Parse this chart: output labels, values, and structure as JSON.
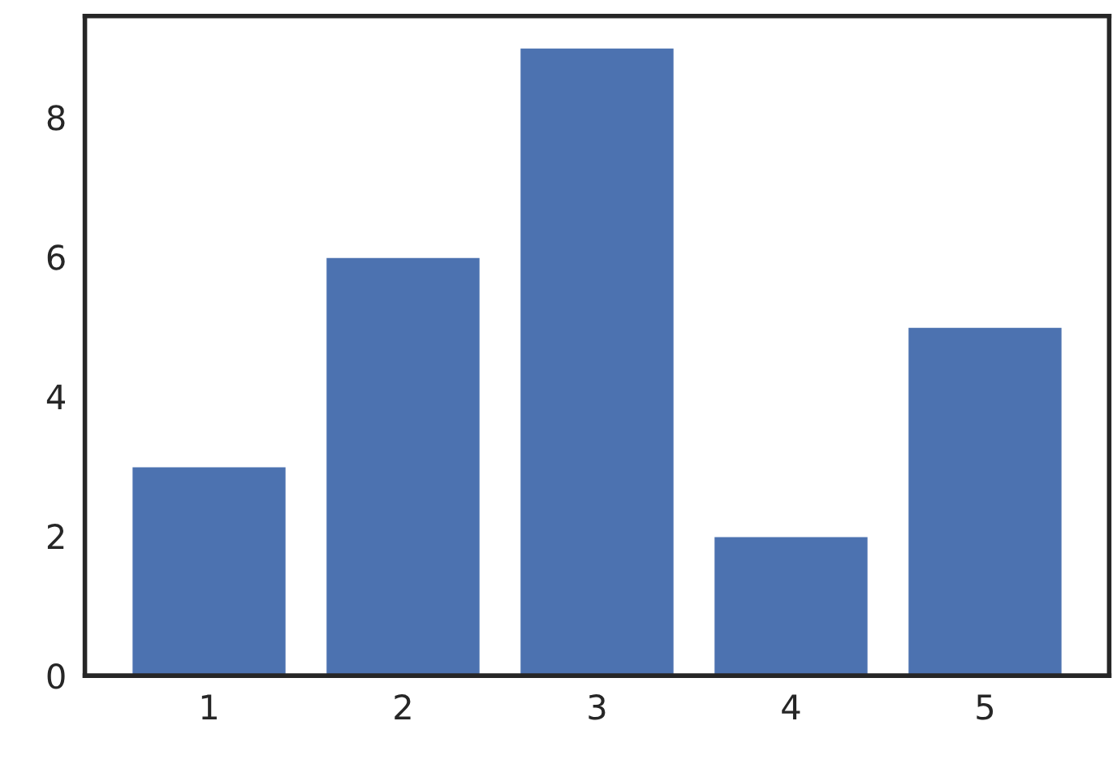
{
  "chart_data": {
    "type": "bar",
    "categories": [
      "1",
      "2",
      "3",
      "4",
      "5"
    ],
    "values": [
      3,
      6,
      9,
      2,
      5
    ],
    "color": "#4c72b0",
    "ylim": [
      0,
      9.45
    ],
    "yticks": [
      0,
      2,
      4,
      6,
      8
    ],
    "grid": false
  }
}
